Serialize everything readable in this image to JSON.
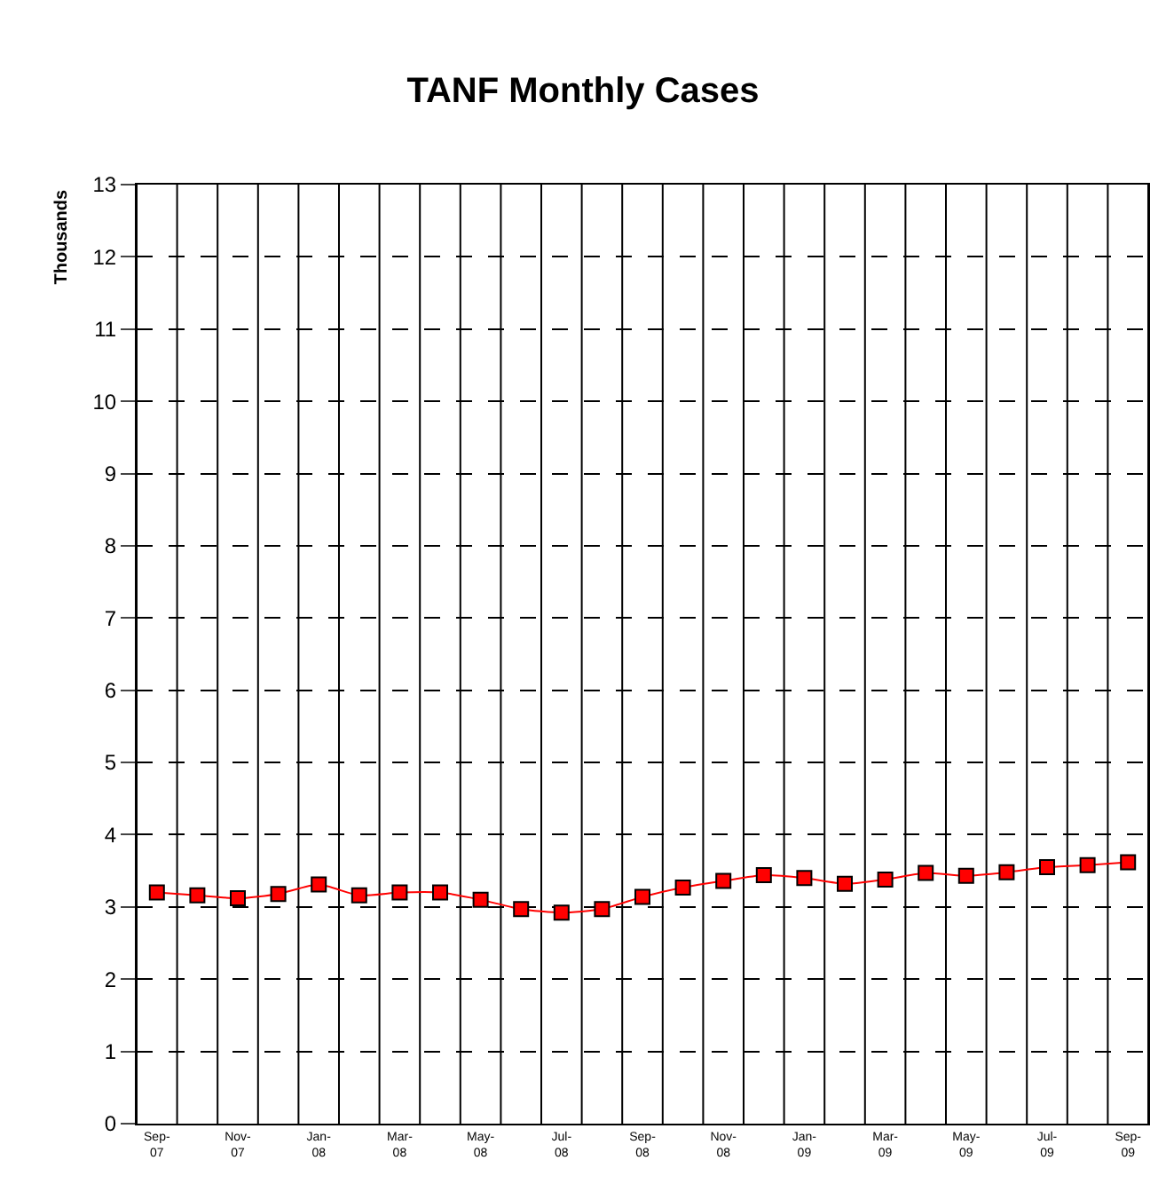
{
  "chart_data": {
    "type": "line",
    "title": "TANF Monthly Cases",
    "ylabel": "Thousands",
    "categories": [
      "Sep-\n07",
      null,
      "Nov-\n07",
      null,
      "Jan-\n08",
      null,
      "Mar-\n08",
      null,
      "May-\n08",
      null,
      "Jul-\n08",
      null,
      "Sep-\n08",
      null,
      "Nov-\n08",
      null,
      "Jan-\n09",
      null,
      "Mar-\n09",
      null,
      "May-\n09",
      null,
      "Jul-\n09",
      null,
      "Sep-\n09"
    ],
    "series": [
      {
        "color": "#ff0000",
        "values": [
          3.2,
          3.16,
          3.12,
          3.18,
          3.31,
          3.16,
          3.2,
          3.2,
          3.1,
          2.97,
          2.92,
          2.97,
          3.14,
          3.27,
          3.36,
          3.44,
          3.4,
          3.32,
          3.38,
          3.47,
          3.43,
          3.48,
          3.55,
          3.58,
          3.62
        ]
      }
    ],
    "ylim": [
      0,
      13
    ],
    "yticks": [
      0,
      1,
      2,
      3,
      4,
      5,
      6,
      7,
      8,
      9,
      10,
      11,
      12,
      13
    ],
    "grid": true,
    "legend": false,
    "marker": "square",
    "line_style": "solid"
  }
}
